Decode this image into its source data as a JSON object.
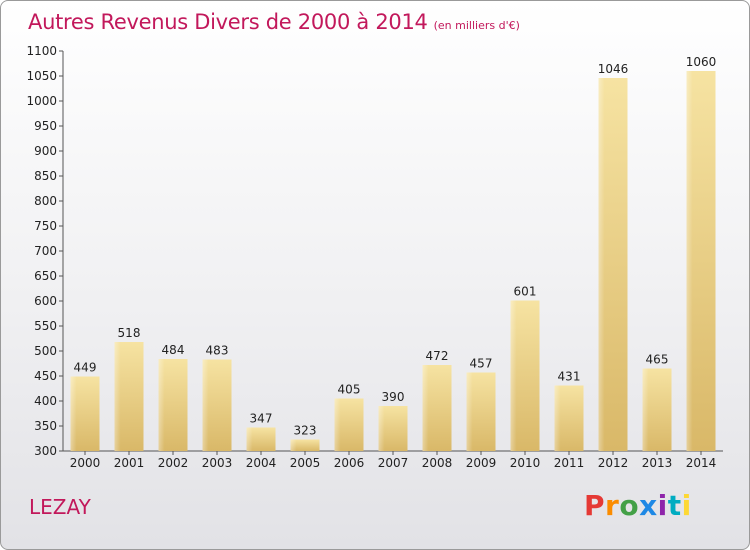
{
  "chart_data": {
    "type": "bar",
    "title": "Autres Revenus Divers de 2000 à 2014",
    "subtitle": "(en milliers d'€)",
    "categories": [
      "2000",
      "2001",
      "2002",
      "2003",
      "2004",
      "2005",
      "2006",
      "2007",
      "2008",
      "2009",
      "2010",
      "2011",
      "2012",
      "2013",
      "2014"
    ],
    "values": [
      449,
      518,
      484,
      483,
      347,
      323,
      405,
      390,
      472,
      457,
      601,
      431,
      1046,
      465,
      1060
    ],
    "ylim": [
      300,
      1100
    ],
    "yticks": [
      300,
      350,
      400,
      450,
      500,
      550,
      600,
      650,
      700,
      750,
      800,
      850,
      900,
      950,
      1000,
      1050,
      1100
    ],
    "grid": false,
    "bar_color": "#e8cd82"
  },
  "footer": {
    "town": "LEZAY",
    "logo": "Proxiti"
  },
  "colors": {
    "title": "#c2185b",
    "logo": [
      "#e53935",
      "#fb8c00",
      "#43a047",
      "#1e88e5",
      "#8e24aa",
      "#00acc1",
      "#fdd835"
    ]
  }
}
